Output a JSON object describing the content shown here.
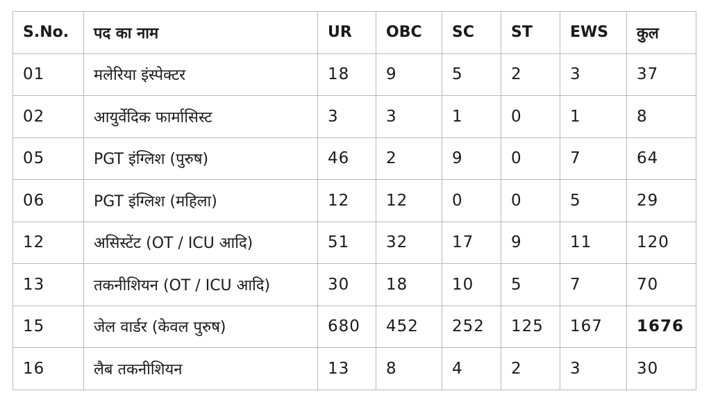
{
  "table": {
    "headers": {
      "sno": "S.No.",
      "post": "पद का नाम",
      "ur": "UR",
      "obc": "OBC",
      "sc": "SC",
      "st": "ST",
      "ews": "EWS",
      "total": "कुल"
    },
    "rows": [
      {
        "sno": "01",
        "post": "मलेरिया इंस्पेक्टर",
        "ur": "18",
        "obc": "9",
        "sc": "5",
        "st": "2",
        "ews": "3",
        "total": "37"
      },
      {
        "sno": "02",
        "post": "आयुर्वेदिक फार्मासिस्ट",
        "ur": "3",
        "obc": "3",
        "sc": "1",
        "st": "0",
        "ews": "1",
        "total": "8"
      },
      {
        "sno": "05",
        "post": "PGT इंग्लिश (पुरुष)",
        "ur": "46",
        "obc": "2",
        "sc": "9",
        "st": "0",
        "ews": "7",
        "total": "64"
      },
      {
        "sno": "06",
        "post": "PGT इंग्लिश (महिला)",
        "ur": "12",
        "obc": "12",
        "sc": "0",
        "st": "0",
        "ews": "5",
        "total": "29"
      },
      {
        "sno": "12",
        "post": "असिस्टेंट (OT / ICU आदि)",
        "ur": "51",
        "obc": "32",
        "sc": "17",
        "st": "9",
        "ews": "11",
        "total": "120"
      },
      {
        "sno": "13",
        "post": "तकनीशियन (OT / ICU आदि)",
        "ur": "30",
        "obc": "18",
        "sc": "10",
        "st": "5",
        "ews": "7",
        "total": "70"
      },
      {
        "sno": "15",
        "post": "जेल वार्डर (केवल पुरुष)",
        "ur": "680",
        "obc": "452",
        "sc": "252",
        "st": "125",
        "ews": "167",
        "total": "1676"
      },
      {
        "sno": "16",
        "post": "लैब तकनीशियन",
        "ur": "13",
        "obc": "8",
        "sc": "4",
        "st": "2",
        "ews": "3",
        "total": "30"
      }
    ]
  }
}
